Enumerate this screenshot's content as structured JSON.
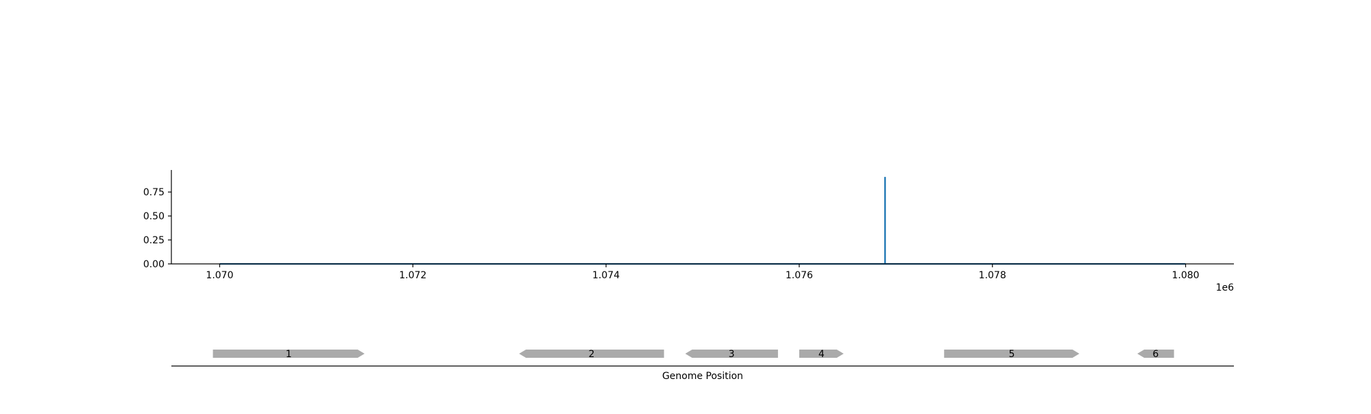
{
  "chart_data": [
    {
      "type": "line",
      "title": "",
      "xlabel": "",
      "ylabel": "",
      "x_tick_labels": [
        "1.070",
        "1.072",
        "1.074",
        "1.076",
        "1.078",
        "1.080"
      ],
      "x_tick_values": [
        1070000,
        1072000,
        1074000,
        1076000,
        1078000,
        1080000
      ],
      "x_offset_label": "1e6",
      "y_tick_labels": [
        "0.00",
        "0.25",
        "0.50",
        "0.75"
      ],
      "y_tick_values": [
        0,
        0.25,
        0.5,
        0.75
      ],
      "xlim": [
        1069500,
        1080500
      ],
      "ylim": [
        0,
        0.98
      ],
      "grid": false,
      "series": [
        {
          "color": "#1f77b4",
          "x": [
            1070000,
            1076888,
            1076888,
            1076889,
            1076889,
            1080000
          ],
          "y": [
            0,
            0,
            0.9,
            0.9,
            0,
            0
          ]
        }
      ]
    },
    {
      "type": "gene_track",
      "xlabel": "Genome Position",
      "xlim": [
        1069500,
        1080500
      ],
      "feature_color": "#aaaaaa",
      "features": [
        {
          "label": "1",
          "start": 1069930,
          "end": 1071500,
          "strand": "+"
        },
        {
          "label": "2",
          "start": 1073100,
          "end": 1074600,
          "strand": "-"
        },
        {
          "label": "3",
          "start": 1074820,
          "end": 1075780,
          "strand": "-"
        },
        {
          "label": "4",
          "start": 1076000,
          "end": 1076460,
          "strand": "+"
        },
        {
          "label": "5",
          "start": 1077500,
          "end": 1078900,
          "strand": "+"
        },
        {
          "label": "6",
          "start": 1079500,
          "end": 1079880,
          "strand": "-"
        }
      ]
    }
  ]
}
